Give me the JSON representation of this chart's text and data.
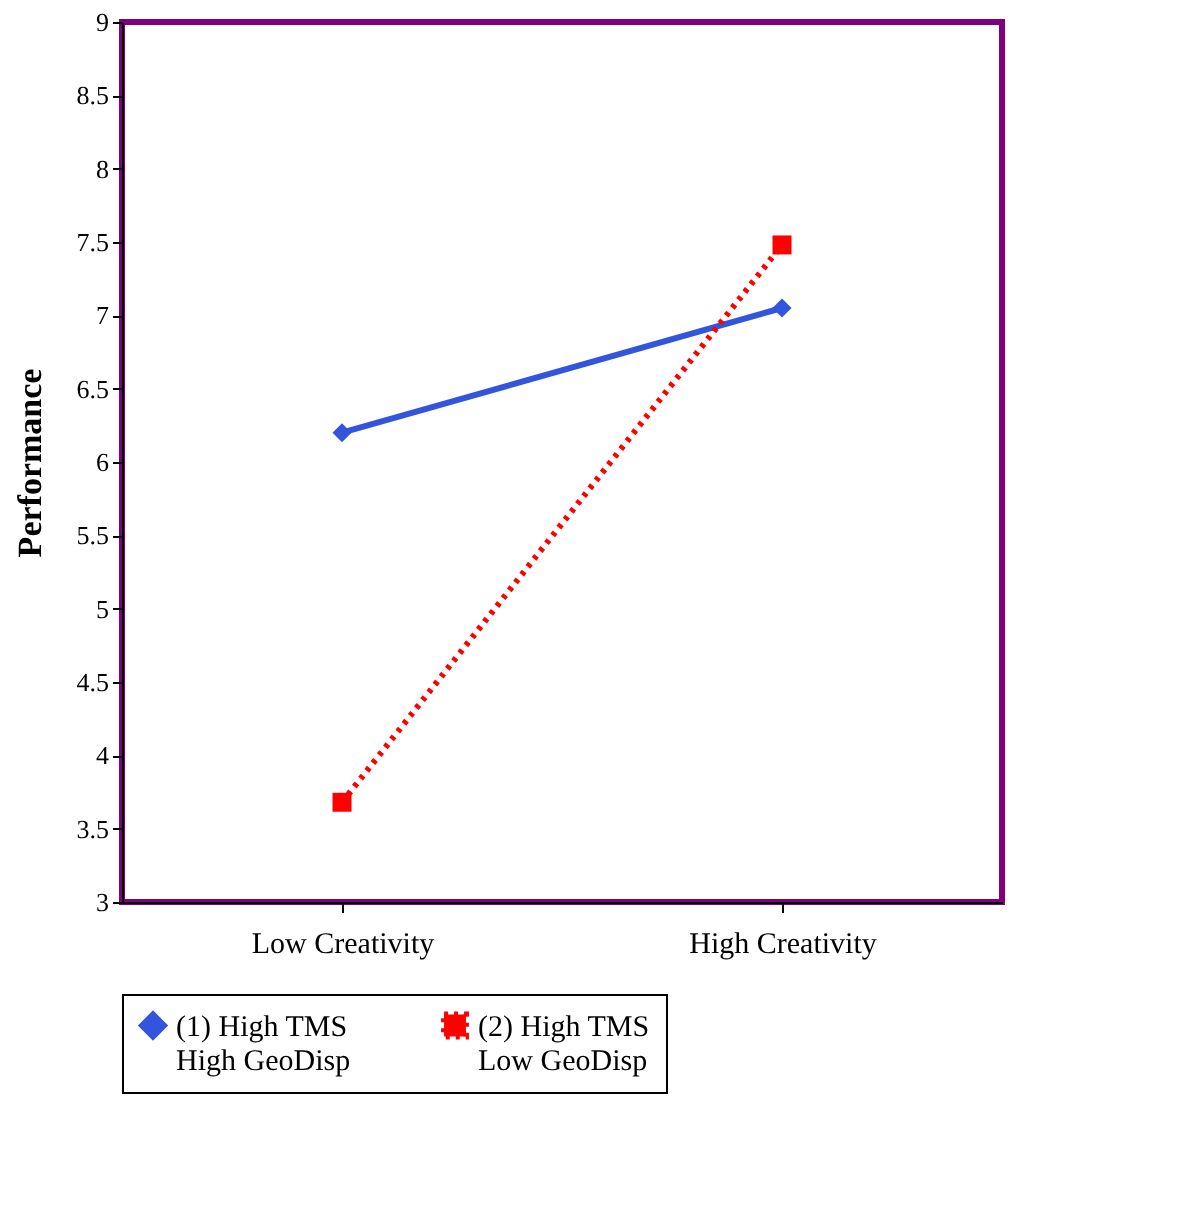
{
  "chart_data": {
    "type": "line",
    "ylabel": "Performance",
    "categories": [
      "Low Creativity",
      "High Creativity"
    ],
    "series": [
      {
        "name": "(1) High TMS\nHigh GeoDisp",
        "color": "#3355dd",
        "values": [
          6.2,
          7.05
        ],
        "marker": "diamond",
        "line_style": "solid"
      },
      {
        "name": "(2) High TMS\nLow GeoDisp",
        "color": "#ff0000",
        "values": [
          3.68,
          7.48
        ],
        "marker": "square",
        "line_style": "dotted"
      }
    ],
    "ylim": [
      3,
      9
    ],
    "yticks": [
      3,
      3.5,
      4,
      4.5,
      5,
      5.5,
      6,
      6.5,
      7,
      7.5,
      8,
      8.5,
      9
    ],
    "grid": false,
    "legend": "bottom"
  }
}
